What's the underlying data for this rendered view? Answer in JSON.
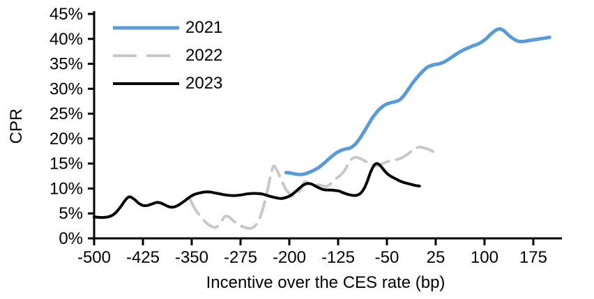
{
  "chart_data": {
    "type": "line",
    "title": "",
    "xlabel": "Incentive over the CES rate (bp)",
    "ylabel": "CPR",
    "xlim": [
      -500,
      219
    ],
    "ylim": [
      0,
      45
    ],
    "x_ticks": [
      -500,
      -425,
      -350,
      -275,
      -200,
      -125,
      -50,
      25,
      100,
      175
    ],
    "y_ticks": [
      0,
      5,
      10,
      15,
      20,
      25,
      30,
      35,
      40,
      45
    ],
    "y_tick_suffix": "%",
    "grid": false,
    "legend_position": "top-left-inside",
    "axis_color": "#000000",
    "series": [
      {
        "name": "2021",
        "color": "#5B9BD5",
        "style": "solid",
        "width": 5,
        "points": [
          [
            -205,
            13.2
          ],
          [
            -198,
            13.1
          ],
          [
            -191,
            12.9
          ],
          [
            -184,
            12.8
          ],
          [
            -177,
            12.9
          ],
          [
            -170,
            13.2
          ],
          [
            -163,
            13.6
          ],
          [
            -156,
            14.1
          ],
          [
            -149,
            14.8
          ],
          [
            -142,
            15.6
          ],
          [
            -135,
            16.4
          ],
          [
            -128,
            17.1
          ],
          [
            -121,
            17.6
          ],
          [
            -114,
            17.9
          ],
          [
            -107,
            18.1
          ],
          [
            -100,
            18.7
          ],
          [
            -93,
            19.8
          ],
          [
            -86,
            21.2
          ],
          [
            -79,
            22.7
          ],
          [
            -72,
            24.2
          ],
          [
            -65,
            25.4
          ],
          [
            -58,
            26.3
          ],
          [
            -51,
            26.9
          ],
          [
            -44,
            27.2
          ],
          [
            -37,
            27.4
          ],
          [
            -30,
            27.8
          ],
          [
            -23,
            28.8
          ],
          [
            -16,
            30.1
          ],
          [
            -9,
            31.4
          ],
          [
            -2,
            32.5
          ],
          [
            5,
            33.5
          ],
          [
            12,
            34.3
          ],
          [
            19,
            34.7
          ],
          [
            26,
            34.9
          ],
          [
            33,
            35.1
          ],
          [
            40,
            35.5
          ],
          [
            47,
            36.1
          ],
          [
            54,
            36.7
          ],
          [
            61,
            37.3
          ],
          [
            68,
            37.8
          ],
          [
            75,
            38.2
          ],
          [
            82,
            38.6
          ],
          [
            89,
            38.9
          ],
          [
            96,
            39.4
          ],
          [
            103,
            40.1
          ],
          [
            110,
            41.0
          ],
          [
            117,
            41.7
          ],
          [
            123,
            42.0
          ],
          [
            129,
            41.7
          ],
          [
            135,
            41.0
          ],
          [
            141,
            40.3
          ],
          [
            147,
            39.8
          ],
          [
            153,
            39.5
          ],
          [
            160,
            39.5
          ],
          [
            170,
            39.7
          ],
          [
            180,
            39.9
          ],
          [
            190,
            40.1
          ],
          [
            200,
            40.3
          ]
        ]
      },
      {
        "name": "2022",
        "color": "#C8C8C8",
        "style": "dashed",
        "width": 4,
        "points": [
          [
            -352,
            7.7
          ],
          [
            -345,
            5.9
          ],
          [
            -337,
            4.5
          ],
          [
            -329,
            3.3
          ],
          [
            -321,
            2.5
          ],
          [
            -313,
            2.2
          ],
          [
            -306,
            3.0
          ],
          [
            -299,
            4.4
          ],
          [
            -292,
            4.2
          ],
          [
            -284,
            3.3
          ],
          [
            -276,
            2.6
          ],
          [
            -268,
            2.2
          ],
          [
            -261,
            2.0
          ],
          [
            -254,
            2.3
          ],
          [
            -247,
            3.6
          ],
          [
            -241,
            5.8
          ],
          [
            -235,
            8.8
          ],
          [
            -229,
            12.4
          ],
          [
            -224,
            14.5
          ],
          [
            -218,
            13.4
          ],
          [
            -212,
            11.6
          ],
          [
            -205,
            9.8
          ],
          [
            -198,
            8.8
          ],
          [
            -191,
            8.6
          ],
          [
            -184,
            9.6
          ],
          [
            -177,
            11.3
          ],
          [
            -171,
            11.0
          ],
          [
            -164,
            10.3
          ],
          [
            -157,
            10.7
          ],
          [
            -150,
            10.6
          ],
          [
            -143,
            10.4
          ],
          [
            -136,
            11.0
          ],
          [
            -129,
            11.9
          ],
          [
            -122,
            12.6
          ],
          [
            -115,
            13.6
          ],
          [
            -108,
            15.3
          ],
          [
            -101,
            16.2
          ],
          [
            -95,
            16.2
          ],
          [
            -88,
            15.8
          ],
          [
            -81,
            15.3
          ],
          [
            -74,
            14.8
          ],
          [
            -67,
            14.5
          ],
          [
            -60,
            14.8
          ],
          [
            -53,
            15.2
          ],
          [
            -46,
            15.5
          ],
          [
            -39,
            15.7
          ],
          [
            -32,
            15.9
          ],
          [
            -25,
            16.3
          ],
          [
            -18,
            16.9
          ],
          [
            -11,
            17.6
          ],
          [
            -5,
            18.1
          ],
          [
            1,
            18.3
          ],
          [
            8,
            18.1
          ],
          [
            15,
            17.8
          ],
          [
            21,
            17.4
          ]
        ]
      },
      {
        "name": "2023",
        "color": "#000000",
        "style": "solid",
        "width": 4,
        "points": [
          [
            -500,
            4.3
          ],
          [
            -492,
            4.2
          ],
          [
            -484,
            4.2
          ],
          [
            -476,
            4.4
          ],
          [
            -468,
            5.0
          ],
          [
            -460,
            6.2
          ],
          [
            -453,
            7.5
          ],
          [
            -448,
            8.2
          ],
          [
            -444,
            8.3
          ],
          [
            -438,
            7.8
          ],
          [
            -431,
            7.0
          ],
          [
            -425,
            6.6
          ],
          [
            -418,
            6.6
          ],
          [
            -411,
            6.9
          ],
          [
            -404,
            7.2
          ],
          [
            -398,
            7.1
          ],
          [
            -391,
            6.7
          ],
          [
            -384,
            6.3
          ],
          [
            -377,
            6.3
          ],
          [
            -370,
            6.7
          ],
          [
            -362,
            7.4
          ],
          [
            -354,
            8.2
          ],
          [
            -346,
            8.8
          ],
          [
            -338,
            9.1
          ],
          [
            -330,
            9.3
          ],
          [
            -322,
            9.3
          ],
          [
            -314,
            9.1
          ],
          [
            -306,
            8.9
          ],
          [
            -298,
            8.7
          ],
          [
            -290,
            8.6
          ],
          [
            -282,
            8.6
          ],
          [
            -274,
            8.7
          ],
          [
            -266,
            8.9
          ],
          [
            -258,
            9.0
          ],
          [
            -250,
            9.0
          ],
          [
            -242,
            8.9
          ],
          [
            -234,
            8.6
          ],
          [
            -226,
            8.3
          ],
          [
            -219,
            8.1
          ],
          [
            -212,
            8.0
          ],
          [
            -205,
            8.2
          ],
          [
            -198,
            8.6
          ],
          [
            -191,
            9.3
          ],
          [
            -184,
            10.1
          ],
          [
            -178,
            10.7
          ],
          [
            -172,
            11.0
          ],
          [
            -166,
            10.9
          ],
          [
            -160,
            10.5
          ],
          [
            -154,
            10.1
          ],
          [
            -148,
            9.8
          ],
          [
            -142,
            9.7
          ],
          [
            -136,
            9.7
          ],
          [
            -130,
            9.6
          ],
          [
            -124,
            9.5
          ],
          [
            -118,
            9.2
          ],
          [
            -112,
            8.9
          ],
          [
            -106,
            8.7
          ],
          [
            -100,
            8.6
          ],
          [
            -95,
            8.7
          ],
          [
            -90,
            9.1
          ],
          [
            -85,
            10.0
          ],
          [
            -80,
            11.5
          ],
          [
            -75,
            13.3
          ],
          [
            -70,
            14.6
          ],
          [
            -66,
            15.0
          ],
          [
            -62,
            14.8
          ],
          [
            -57,
            14.1
          ],
          [
            -52,
            13.3
          ],
          [
            -47,
            12.7
          ],
          [
            -42,
            12.3
          ],
          [
            -36,
            11.9
          ],
          [
            -30,
            11.5
          ],
          [
            -24,
            11.2
          ],
          [
            -18,
            11.0
          ],
          [
            -12,
            10.8
          ],
          [
            -6,
            10.6
          ],
          [
            0,
            10.5
          ]
        ]
      }
    ]
  }
}
